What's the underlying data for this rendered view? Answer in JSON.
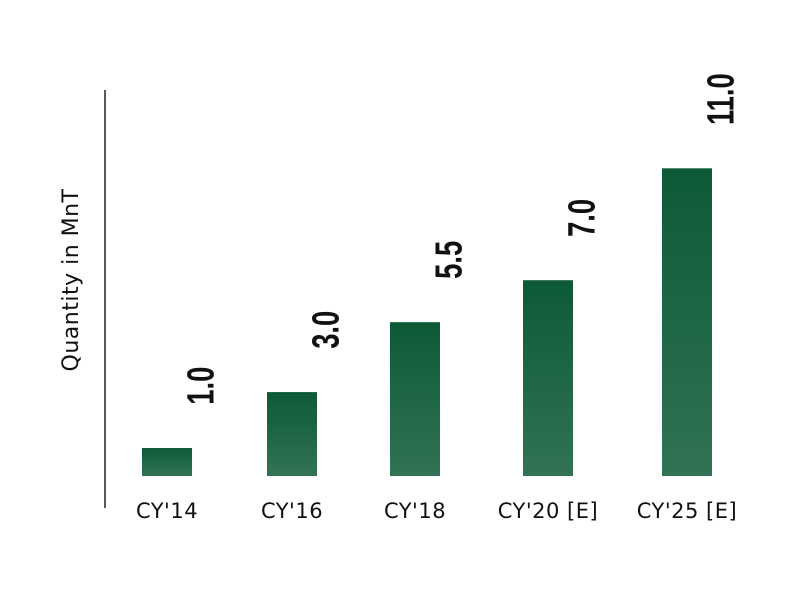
{
  "chart_data": {
    "type": "bar",
    "y_label": "Quantity in MnT",
    "categories": [
      "CY'14",
      "CY'16",
      "CY'18",
      "CY'20 [E]",
      "CY'25 [E]"
    ],
    "values": [
      1.0,
      3.0,
      5.5,
      7.0,
      11.0
    ],
    "value_labels": [
      "1.0",
      "3.0",
      "5.5",
      "7.0",
      "11.0"
    ],
    "color": "#0d5a36",
    "ylim": [
      0,
      13.8
    ]
  }
}
